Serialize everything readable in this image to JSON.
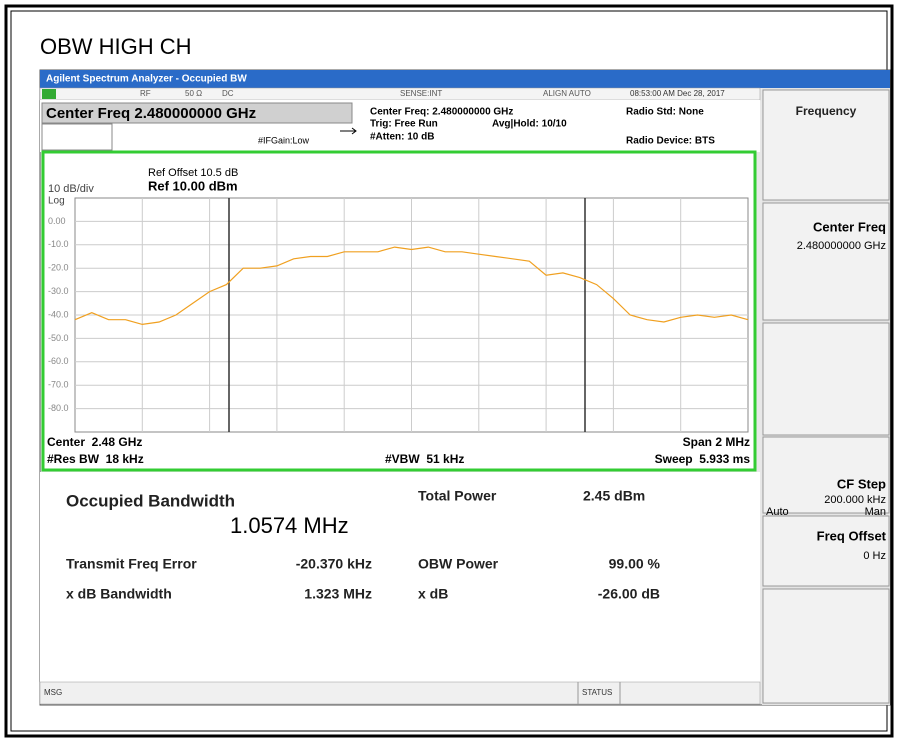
{
  "header": {
    "title": "OBW HIGH CH"
  },
  "window": {
    "title": "Agilent Spectrum Analyzer - Occupied BW",
    "status": [
      "RF",
      "50 Ω",
      "DC",
      "SENSE:INT",
      "ALIGN AUTO",
      "08:53:00 AM Dec 28, 2017"
    ]
  },
  "settings": {
    "center_freq": "Center Freq 2.480000000 GHz",
    "center_freq_info": "Center Freq: 2.480000000 GHz",
    "trig": "Trig: Free Run",
    "avg_hold": "Avg|Hold: 10/10",
    "if_gain": "#IFGain:Low",
    "atten": "#Atten: 10 dB",
    "radio_std": "Radio Std: None",
    "radio_device": "Radio Device: BTS"
  },
  "graph": {
    "ref_offset": "Ref Offset 10.5 dB",
    "scale": "10 dB/div",
    "ref_level": "Ref 10.00 dBm",
    "log": "Log",
    "center": "Center  2.48 GHz",
    "res_bw": "#Res BW  18 kHz",
    "vbw": "#VBW  51 kHz",
    "span": "Span 2 MHz",
    "sweep": "Sweep  5.933 ms"
  },
  "results": {
    "obw_label": "Occupied Bandwidth",
    "obw_value": "1.0574 MHz",
    "total_power_label": "Total Power",
    "total_power_value": "2.45 dBm",
    "freq_error_label": "Transmit Freq Error",
    "freq_error_value": "-20.370 kHz",
    "obw_power_label": "OBW Power",
    "obw_power_value": "99.00 %",
    "xdb_bw_label": "x dB Bandwidth",
    "xdb_bw_value": "1.323 MHz",
    "xdb_label": "x dB",
    "xdb_value": "-26.00 dB"
  },
  "softkeys": {
    "menu": "Frequency",
    "center_freq": "Center Freq",
    "center_freq_value": "2.480000000 GHz",
    "cf_step": "CF Step",
    "cf_step_value": "200.000 kHz",
    "auto": "Auto",
    "man": "Man",
    "freq_offset": "Freq Offset",
    "freq_offset_value": "0 Hz"
  },
  "footer": {
    "msg": "MSG",
    "status": "STATUS"
  },
  "chart_data": {
    "type": "line",
    "color": "#f0a020",
    "x": [
      2.479,
      2.47905,
      2.4791,
      2.47915,
      2.4792,
      2.47925,
      2.4793,
      2.47935,
      2.4794,
      2.47945,
      2.4795,
      2.47955,
      2.4796,
      2.47965,
      2.4797,
      2.47975,
      2.4798,
      2.47985,
      2.4799,
      2.47995,
      2.48,
      2.48005,
      2.4801,
      2.48015,
      2.4802,
      2.48025,
      2.4803,
      2.48035,
      2.4804,
      2.48045,
      2.4805,
      2.48055,
      2.4806,
      2.48065,
      2.4807,
      2.48075,
      2.4808,
      2.48085,
      2.4809,
      2.48095,
      2.481
    ],
    "values": [
      -42,
      -39,
      -42,
      -42,
      -44,
      -43,
      -40,
      -35,
      -30,
      -27,
      -20,
      -20,
      -19,
      -16,
      -15,
      -15,
      -13,
      -13,
      -13,
      -11,
      -12,
      -11,
      -13,
      -13,
      -14,
      -15,
      -16,
      -17,
      -23,
      -22,
      -24,
      -27,
      -33,
      -40,
      -42,
      -43,
      -41,
      -40,
      -41,
      -40,
      -42
    ],
    "xlim": [
      2.479,
      2.481
    ],
    "ylim": [
      -90,
      10
    ],
    "yticks": [
      {
        "value": 0,
        "label": "0.00"
      },
      {
        "value": -10,
        "label": "-10.0"
      },
      {
        "value": -20,
        "label": "-20.0"
      },
      {
        "value": -30,
        "label": "-30.0"
      },
      {
        "value": -40,
        "label": "-40.0"
      },
      {
        "value": -50,
        "label": "-50.0"
      },
      {
        "value": -60,
        "label": "-60.0"
      },
      {
        "value": -70,
        "label": "-70.0"
      },
      {
        "value": -80,
        "label": "-80.0"
      }
    ],
    "grid": true
  }
}
